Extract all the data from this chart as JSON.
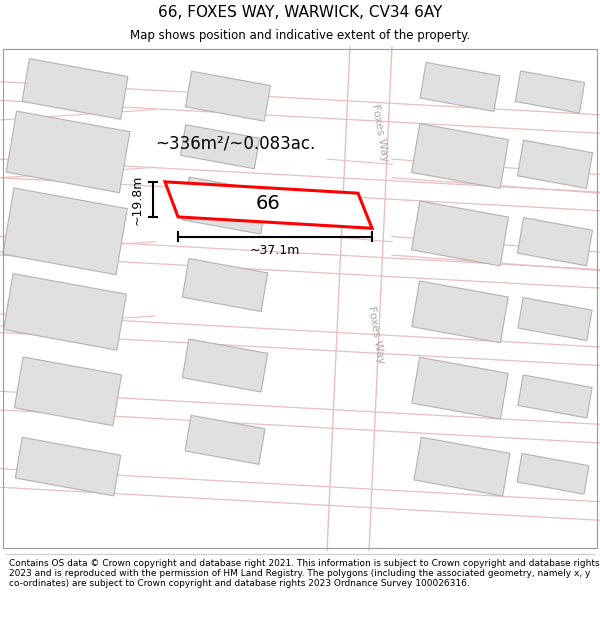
{
  "title": "66, FOXES WAY, WARWICK, CV34 6AY",
  "subtitle": "Map shows position and indicative extent of the property.",
  "footer": "Contains OS data © Crown copyright and database right 2021. This information is subject to Crown copyright and database rights 2023 and is reproduced with the permission of HM Land Registry. The polygons (including the associated geometry, namely x, y co-ordinates) are subject to Crown copyright and database rights 2023 Ordnance Survey 100026316.",
  "map_bg": "#f2f0f0",
  "road_color": "#e8bfbf",
  "road_fill": "#ffffff",
  "building_color": "#e0e0e0",
  "building_edge": "#b8b0b0",
  "highlight_color": "#ff0000",
  "road_label_color": "#b0a8a8",
  "area_text": "~336m²/~0.083ac.",
  "width_text": "~37.1m",
  "height_text": "~19.8m",
  "number_text": "66",
  "title_fontsize": 11,
  "subtitle_fontsize": 8.5,
  "footer_fontsize": 6.5
}
